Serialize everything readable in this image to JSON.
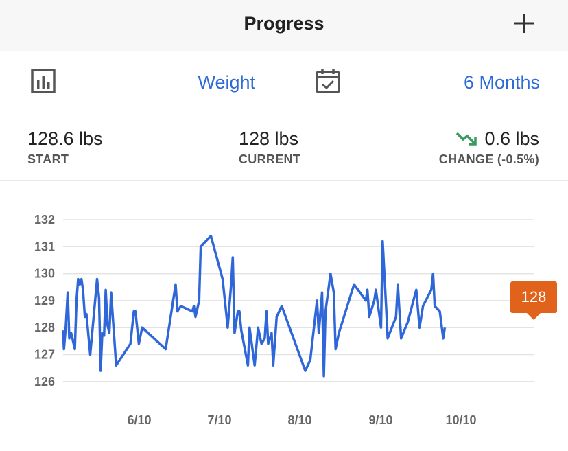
{
  "header": {
    "title": "Progress",
    "add_icon": "plus-icon"
  },
  "selectors": {
    "metric": {
      "icon": "bar-chart-icon",
      "label": "Weight"
    },
    "range": {
      "icon": "calendar-check-icon",
      "label": "6 Months"
    }
  },
  "stats": {
    "start": {
      "value": "128.6 lbs",
      "label": "START"
    },
    "current": {
      "value": "128 lbs",
      "label": "CURRENT"
    },
    "change": {
      "value": "0.6 lbs",
      "label": "CHANGE (-0.5%)",
      "icon": "trend-down-icon"
    }
  },
  "colors": {
    "accent": "#2e6bd6",
    "line": "#2f67d8",
    "tooltip": "#e0621b",
    "trend": "#3a9a5b",
    "grid": "#e3e3e3"
  },
  "chart_data": {
    "type": "line",
    "x_ticks": [
      "6/10",
      "7/10",
      "8/10",
      "9/10",
      "10/10"
    ],
    "y_ticks": [
      132,
      131,
      130,
      129,
      128,
      127,
      126
    ],
    "ylim": [
      126,
      132
    ],
    "grid": true,
    "series": [
      {
        "values": [
          [
            5.0,
            127.9
          ],
          [
            5.05,
            127.2
          ],
          [
            5.16,
            128.0
          ],
          [
            5.28,
            129.3
          ],
          [
            5.38,
            127.6
          ],
          [
            5.49,
            127.8
          ],
          [
            5.72,
            127.2
          ],
          [
            5.82,
            129.0
          ],
          [
            5.92,
            129.8
          ],
          [
            6.02,
            129.6
          ],
          [
            6.12,
            129.8
          ],
          [
            6.22,
            129.4
          ],
          [
            6.33,
            128.4
          ],
          [
            6.43,
            128.5
          ],
          [
            6.66,
            127.0
          ],
          [
            7.08,
            129.8
          ],
          [
            7.2,
            129.1
          ],
          [
            7.3,
            126.4
          ],
          [
            7.4,
            127.8
          ],
          [
            7.51,
            127.7
          ],
          [
            7.61,
            129.4
          ],
          [
            7.72,
            128.1
          ],
          [
            7.83,
            127.8
          ],
          [
            7.94,
            129.3
          ],
          [
            8.04,
            128.4
          ],
          [
            8.25,
            126.6
          ],
          [
            9.12,
            127.4
          ],
          [
            9.33,
            128.6
          ],
          [
            9.43,
            128.6
          ],
          [
            9.64,
            127.4
          ],
          [
            9.84,
            128.0
          ],
          [
            11.28,
            127.2
          ],
          [
            11.89,
            129.6
          ],
          [
            12.0,
            128.6
          ],
          [
            12.21,
            128.8
          ],
          [
            12.91,
            128.6
          ],
          [
            13.01,
            128.8
          ],
          [
            13.11,
            128.4
          ],
          [
            13.33,
            129.0
          ],
          [
            13.43,
            131.0
          ],
          [
            14.05,
            131.4
          ],
          [
            14.77,
            129.8
          ],
          [
            14.98,
            128.6
          ],
          [
            15.08,
            128.0
          ],
          [
            15.29,
            129.6
          ],
          [
            15.39,
            130.6
          ],
          [
            15.5,
            127.8
          ],
          [
            15.7,
            128.6
          ],
          [
            15.8,
            128.6
          ],
          [
            15.91,
            127.9
          ],
          [
            16.32,
            126.6
          ],
          [
            16.42,
            128.0
          ],
          [
            16.73,
            126.6
          ],
          [
            16.94,
            128.0
          ],
          [
            17.15,
            127.4
          ],
          [
            17.35,
            127.6
          ],
          [
            17.46,
            128.6
          ],
          [
            17.56,
            127.4
          ],
          [
            17.77,
            127.8
          ],
          [
            17.87,
            126.6
          ],
          [
            18.08,
            128.4
          ],
          [
            18.39,
            128.8
          ],
          [
            19.83,
            126.4
          ],
          [
            20.14,
            126.8
          ],
          [
            20.55,
            129.0
          ],
          [
            20.66,
            127.8
          ],
          [
            20.86,
            129.3
          ],
          [
            20.97,
            126.2
          ],
          [
            21.07,
            128.6
          ],
          [
            21.38,
            130.0
          ],
          [
            21.58,
            129.3
          ],
          [
            21.69,
            127.2
          ],
          [
            21.89,
            127.8
          ],
          [
            22.82,
            129.6
          ],
          [
            23.54,
            129.0
          ],
          [
            23.64,
            129.4
          ],
          [
            23.75,
            128.4
          ],
          [
            24.06,
            129.0
          ],
          [
            24.16,
            129.4
          ],
          [
            24.47,
            128.0
          ],
          [
            24.57,
            131.2
          ],
          [
            24.78,
            128.8
          ],
          [
            24.88,
            127.6
          ],
          [
            25.39,
            128.4
          ],
          [
            25.5,
            129.6
          ],
          [
            25.7,
            127.6
          ],
          [
            26.11,
            128.2
          ],
          [
            26.63,
            129.4
          ],
          [
            26.83,
            128.0
          ],
          [
            27.04,
            128.8
          ],
          [
            27.55,
            129.4
          ],
          [
            27.66,
            130.0
          ],
          [
            27.76,
            128.8
          ],
          [
            28.07,
            128.6
          ],
          [
            28.28,
            127.6
          ],
          [
            28.38,
            128.0
          ]
        ]
      }
    ],
    "x_value_unit": "weeks",
    "tooltip": {
      "value": "128"
    }
  }
}
